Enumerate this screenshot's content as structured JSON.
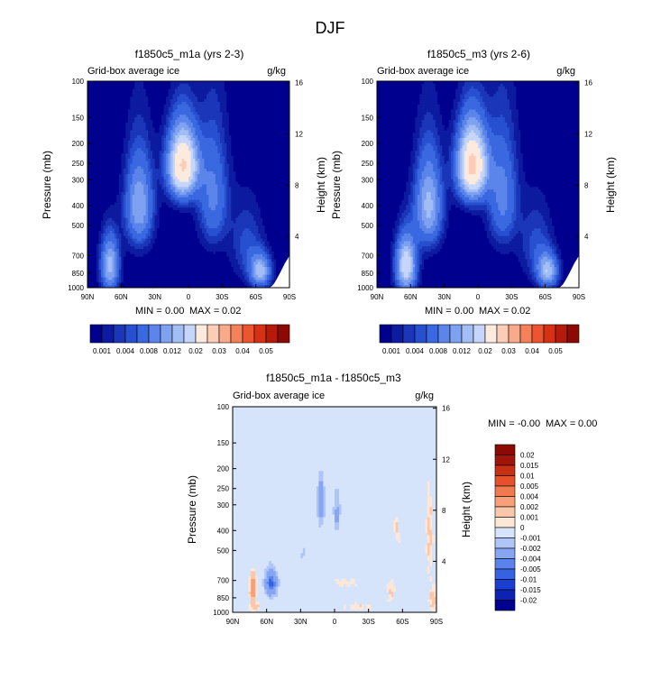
{
  "figure": {
    "title": "DJF"
  },
  "colors": {
    "field_scale": [
      "#00008f",
      "#0c1ba0",
      "#1b36b8",
      "#2650d0",
      "#3a68e0",
      "#5b85ea",
      "#7ea1f0",
      "#a3bdf5",
      "#c6d6fa",
      "#fdeadf",
      "#fbcdb6",
      "#f8aa8a",
      "#f4815a",
      "#ec5530",
      "#d83015",
      "#b51a0a",
      "#8c0a03"
    ],
    "diff_scale": [
      "#00008f",
      "#0c22b2",
      "#1a3fd0",
      "#3562e2",
      "#5a84ec",
      "#86a6f3",
      "#afc5f8",
      "#d6e4fb",
      "#fde8d8",
      "#fbc7aa",
      "#f7a07a",
      "#f07a50",
      "#e3522a",
      "#c73014",
      "#a0140a",
      "#8c0a03"
    ]
  },
  "chart_data": [
    {
      "type": "heatmap",
      "title": "f1850c5_m1a (yrs 2-3)",
      "subtitle_left": "Grid-box average ice",
      "subtitle_right": "g/kg",
      "ylabel": "Pressure (mb)",
      "ylabel_right": "Height (km)",
      "x_ticks": [
        "90N",
        "60N",
        "30N",
        "0",
        "30S",
        "60S",
        "90S"
      ],
      "y_ticks": [
        "100",
        "150",
        "200",
        "250",
        "300",
        "400",
        "500",
        "700",
        "850",
        "1000"
      ],
      "y_right_ticks": [
        "16",
        "12",
        "8",
        "4"
      ],
      "stats": {
        "min_label": "MIN =",
        "min": "0.00",
        "max_label": "MAX =",
        "max": "0.02"
      },
      "colorbar_labels": [
        "0.001",
        "0.004",
        "0.008",
        "0.012",
        "0.02",
        "0.03",
        "0.04",
        "0.05"
      ],
      "blobs": [
        {
          "lat": 5,
          "p": 255,
          "amp": 0.0205,
          "wlat": 13,
          "wp": 100
        },
        {
          "lat": -22,
          "p": 360,
          "amp": 0.0065,
          "wlat": 13,
          "wp": 230
        },
        {
          "lat": 44,
          "p": 400,
          "amp": 0.01,
          "wlat": 12,
          "wp": 200
        },
        {
          "lat": 70,
          "p": 780,
          "amp": 0.011,
          "wlat": 8,
          "wp": 240
        },
        {
          "lat": -64,
          "p": 830,
          "amp": 0.011,
          "wlat": 9,
          "wp": 150
        },
        {
          "lat": -52,
          "p": 620,
          "amp": 0.0035,
          "wlat": 14,
          "wp": 260
        }
      ]
    },
    {
      "type": "heatmap",
      "title": "f1850c5_m3 (yrs 2-6)",
      "subtitle_left": "Grid-box average ice",
      "subtitle_right": "g/kg",
      "ylabel": "Pressure (mb)",
      "ylabel_right": "Height (km)",
      "x_ticks": [
        "90N",
        "60N",
        "30N",
        "0",
        "30S",
        "60S",
        "90S"
      ],
      "y_ticks": [
        "100",
        "150",
        "200",
        "250",
        "300",
        "400",
        "500",
        "700",
        "850",
        "1000"
      ],
      "y_right_ticks": [
        "16",
        "12",
        "8",
        "4"
      ],
      "stats": {
        "min_label": "MIN =",
        "min": "0.00",
        "max_label": "MAX =",
        "max": "0.02"
      },
      "colorbar_labels": [
        "0.001",
        "0.004",
        "0.008",
        "0.012",
        "0.02",
        "0.03",
        "0.04",
        "0.05"
      ],
      "blobs": [
        {
          "lat": 5,
          "p": 255,
          "amp": 0.0215,
          "wlat": 13,
          "wp": 105
        },
        {
          "lat": -22,
          "p": 360,
          "amp": 0.0068,
          "wlat": 13,
          "wp": 230
        },
        {
          "lat": 44,
          "p": 400,
          "amp": 0.0108,
          "wlat": 12,
          "wp": 200
        },
        {
          "lat": 64,
          "p": 780,
          "amp": 0.0145,
          "wlat": 9,
          "wp": 240
        },
        {
          "lat": -62,
          "p": 830,
          "amp": 0.011,
          "wlat": 9,
          "wp": 150
        },
        {
          "lat": -52,
          "p": 620,
          "amp": 0.0035,
          "wlat": 14,
          "wp": 260
        }
      ]
    },
    {
      "type": "heatmap",
      "title": "f1850c5_m1a - f1850c5_m3",
      "subtitle_left": "Grid-box average ice",
      "subtitle_right": "g/kg",
      "ylabel": "Pressure (mb)",
      "ylabel_right": "Height (km)",
      "x_ticks": [
        "90N",
        "60N",
        "30N",
        "0",
        "30S",
        "60S",
        "90S"
      ],
      "y_ticks": [
        "100",
        "150",
        "200",
        "250",
        "300",
        "400",
        "500",
        "700",
        "850",
        "1000"
      ],
      "y_right_ticks": [
        "16",
        "12",
        "8",
        "4"
      ],
      "stats": {
        "min_label": "MIN =",
        "min": "-0.00",
        "max_label": "MAX =",
        "max": "0.00"
      },
      "colorbar_labels": [
        "0.02",
        "0.015",
        "0.01",
        "0.005",
        "0.004",
        "0.002",
        "0.001",
        "0",
        "-0.001",
        "-0.002",
        "-0.004",
        "-0.005",
        "-0.01",
        "-0.015",
        "-0.02"
      ],
      "blobs": [
        {
          "lat": 12,
          "p": 290,
          "amp": -0.0035,
          "wlat": 3.5,
          "wp": 80
        },
        {
          "lat": -2,
          "p": 330,
          "amp": -0.0025,
          "wlat": 3,
          "wp": 80
        },
        {
          "lat": 56,
          "p": 720,
          "amp": -0.0055,
          "wlat": 5.5,
          "wp": 110
        },
        {
          "lat": 72,
          "p": 760,
          "amp": 0.004,
          "wlat": 2.5,
          "wp": 110
        },
        {
          "lat": 28,
          "p": 520,
          "amp": -0.0012,
          "wlat": 4,
          "wp": 60
        },
        {
          "lat": -55,
          "p": 400,
          "amp": 0.001,
          "wlat": 3,
          "wp": 90
        },
        {
          "lat": -84,
          "p": 430,
          "amp": 0.0012,
          "wlat": 3.5,
          "wp": 220
        },
        {
          "lat": -50,
          "p": 800,
          "amp": 0.0011,
          "wlat": 4,
          "wp": 120
        },
        {
          "lat": -10,
          "p": 720,
          "amp": 0.0008,
          "wlat": 15,
          "wp": 50
        },
        {
          "lat": 70,
          "p": 940,
          "amp": 0.0012,
          "wlat": 6,
          "wp": 60
        },
        {
          "lat": -20,
          "p": 940,
          "amp": 0.0009,
          "wlat": 18,
          "wp": 50
        },
        {
          "lat": -87,
          "p": 870,
          "amp": 0.0014,
          "wlat": 4,
          "wp": 140
        }
      ]
    }
  ]
}
